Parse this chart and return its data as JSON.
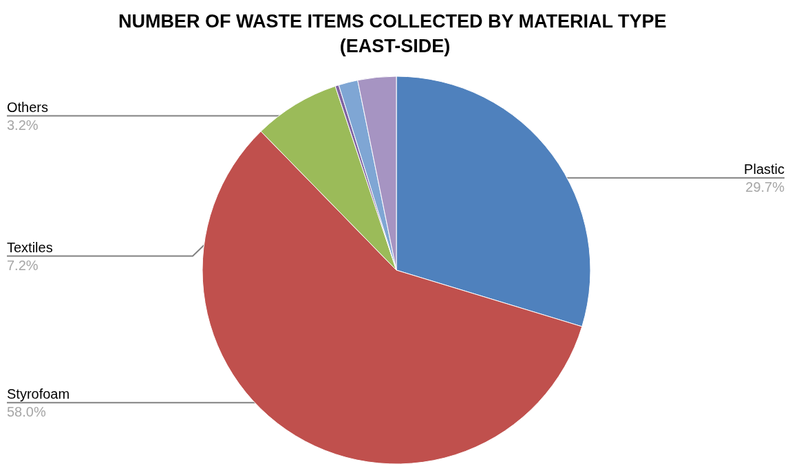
{
  "chart_data": {
    "type": "pie",
    "title": "NUMBER OF WASTE ITEMS COLLECTED BY MATERIAL TYPE (EAST-SIDE)",
    "categories": [
      "Plastic",
      "Styrofoam",
      "Textiles",
      null,
      null,
      "Others"
    ],
    "values": [
      29.7,
      58.0,
      7.2,
      0.3,
      1.6,
      3.2
    ],
    "colors": [
      "#4f81bd",
      "#c0504d",
      "#9bbb59",
      "#8064a2",
      "#7fa6d4",
      "#a694c2"
    ],
    "value_labels": [
      "29.7%",
      "58.0%",
      "7.2%",
      null,
      null,
      "3.2%"
    ]
  }
}
